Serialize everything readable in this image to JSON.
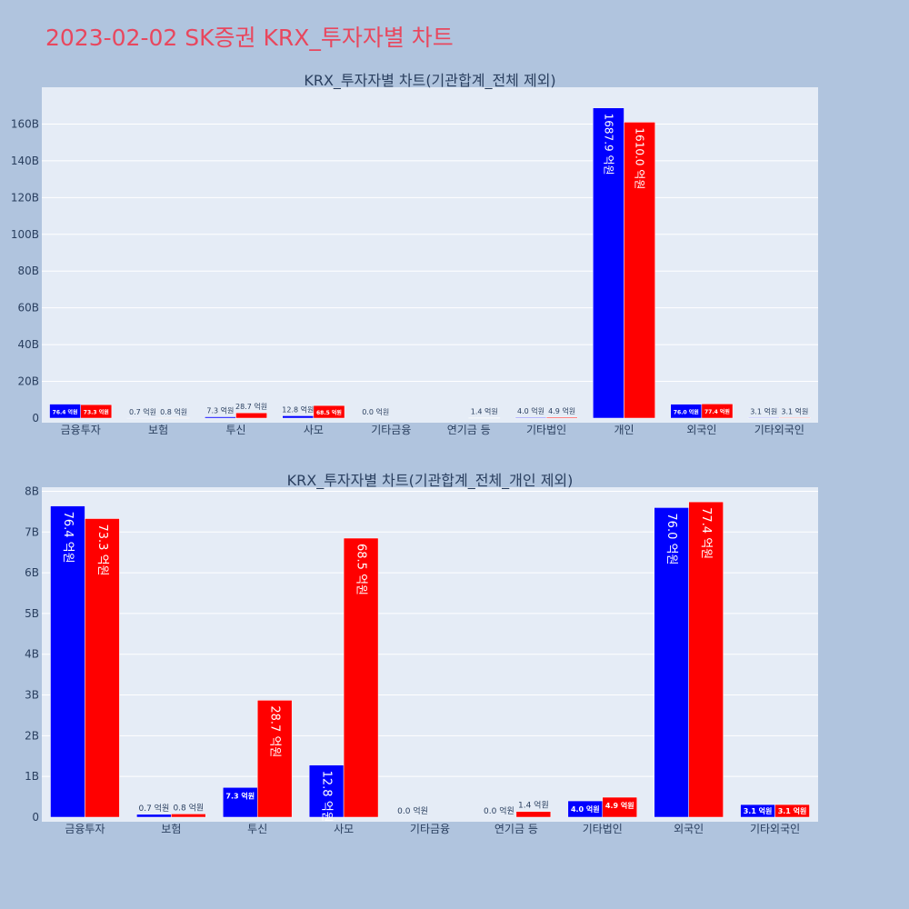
{
  "page_title": "2023-02-02 SK증권 KRX_투자자별 차트",
  "colors": {
    "buy": "#0000ff",
    "sell": "#ff0000",
    "background": "#b0c4de",
    "plot_bg": "#e5ecf6",
    "title": "#e8475e"
  },
  "chart_data": [
    {
      "type": "bar",
      "title": "KRX_투자자별 차트(기관합계_전체 제외)",
      "categories": [
        "금융투자",
        "보험",
        "투신",
        "사모",
        "기타금융",
        "연기금 등",
        "기타법인",
        "개인",
        "외국인",
        "기타외국인"
      ],
      "yticks": [
        "0",
        "20B",
        "40B",
        "60B",
        "80B",
        "100B",
        "120B",
        "140B",
        "160B"
      ],
      "ylim": [
        0,
        180
      ],
      "grid": true,
      "series": [
        {
          "values": [
            7.64,
            0.07,
            0.73,
            1.28,
            0.0,
            0.0,
            0.4,
            168.79,
            7.6,
            0.31
          ],
          "labels": [
            "76.4 억원",
            "0.7 억원",
            "7.3 억원",
            "12.8 억원",
            "0.0 억원",
            "",
            "4.0 억원",
            "1687.9 억원",
            "76.0 억원",
            "3.1 억원"
          ]
        },
        {
          "values": [
            7.33,
            0.08,
            2.87,
            6.85,
            0.0,
            0.14,
            0.49,
            161.0,
            7.74,
            0.31
          ],
          "labels": [
            "73.3 억원",
            "0.8 억원",
            "28.7 억원",
            "68.5 억원",
            "",
            "1.4 억원",
            "4.9 억원",
            "1610.0 억원",
            "77.4 억원",
            "3.1 억원"
          ]
        }
      ]
    },
    {
      "type": "bar",
      "title": "KRX_투자자별 차트(기관합계_전체_개인 제외)",
      "categories": [
        "금융투자",
        "보험",
        "투신",
        "사모",
        "기타금융",
        "연기금 등",
        "기타법인",
        "외국인",
        "기타외국인"
      ],
      "yticks": [
        "0",
        "1B",
        "2B",
        "3B",
        "4B",
        "5B",
        "6B",
        "7B",
        "8B"
      ],
      "ylim": [
        0,
        8.1
      ],
      "grid": true,
      "series": [
        {
          "values": [
            7.64,
            0.07,
            0.73,
            1.28,
            0.0,
            0.0,
            0.4,
            7.6,
            0.31
          ],
          "labels": [
            "76.4 억원",
            "0.7 억원",
            "7.3 억원",
            "12.8 억원",
            "0.0 억원",
            "0.0 억원",
            "4.0 억원",
            "76.0 억원",
            "3.1 억원"
          ]
        },
        {
          "values": [
            7.33,
            0.08,
            2.87,
            6.85,
            0.0,
            0.14,
            0.49,
            7.74,
            0.31
          ],
          "labels": [
            "73.3 억원",
            "0.8 억원",
            "28.7 억원",
            "68.5 억원",
            "",
            "1.4 억원",
            "4.9 억원",
            "77.4 억원",
            "3.1 억원"
          ]
        }
      ]
    }
  ]
}
